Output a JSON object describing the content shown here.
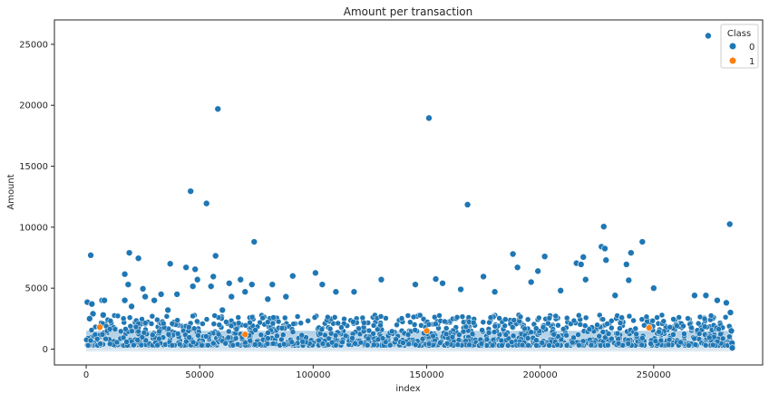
{
  "chart_data": {
    "type": "scatter",
    "title": "Amount per transaction",
    "xlabel": "index",
    "ylabel": "Amount",
    "xlim": [
      -14000,
      298000
    ],
    "ylim": [
      -1300,
      27000
    ],
    "xticks": [
      0,
      50000,
      100000,
      150000,
      200000,
      250000
    ],
    "yticks": [
      0,
      5000,
      10000,
      15000,
      20000,
      25000
    ],
    "grid": false,
    "legend": {
      "title": "Class",
      "placement": "top-right",
      "entries": [
        {
          "label": "0",
          "color": "#1f77b4"
        },
        {
          "label": "1",
          "color": "#ff7f0e"
        }
      ]
    },
    "bulk_band": {
      "class": "0",
      "x_range": [
        0,
        284807
      ],
      "amount_range": [
        0,
        2500
      ],
      "note_density": "dense"
    },
    "series": [
      {
        "name": "0",
        "color": "#1f77b4",
        "points": [
          [
            500,
            3850
          ],
          [
            2000,
            7700
          ],
          [
            2500,
            3700
          ],
          [
            3000,
            2900
          ],
          [
            1500,
            2500
          ],
          [
            7000,
            4000
          ],
          [
            8000,
            4000
          ],
          [
            7500,
            2800
          ],
          [
            19000,
            7900
          ],
          [
            23000,
            7450
          ],
          [
            17000,
            6150
          ],
          [
            18500,
            5300
          ],
          [
            17000,
            4000
          ],
          [
            25000,
            4950
          ],
          [
            20000,
            3500
          ],
          [
            26000,
            4300
          ],
          [
            30000,
            4000
          ],
          [
            33000,
            4500
          ],
          [
            36000,
            3200
          ],
          [
            37000,
            7000
          ],
          [
            40000,
            4500
          ],
          [
            44000,
            6700
          ],
          [
            46000,
            12950
          ],
          [
            47000,
            5150
          ],
          [
            48000,
            6550
          ],
          [
            49000,
            5700
          ],
          [
            53000,
            11950
          ],
          [
            55000,
            5150
          ],
          [
            57000,
            7650
          ],
          [
            56000,
            5950
          ],
          [
            58000,
            19700
          ],
          [
            60000,
            3200
          ],
          [
            63000,
            5400
          ],
          [
            64000,
            4300
          ],
          [
            68000,
            5700
          ],
          [
            70000,
            4700
          ],
          [
            74000,
            8800
          ],
          [
            73000,
            5300
          ],
          [
            82000,
            5300
          ],
          [
            80000,
            4100
          ],
          [
            91000,
            6000
          ],
          [
            88000,
            4300
          ],
          [
            101000,
            6250
          ],
          [
            104000,
            5300
          ],
          [
            110000,
            4700
          ],
          [
            118000,
            4700
          ],
          [
            130000,
            5700
          ],
          [
            145000,
            5300
          ],
          [
            151000,
            18950
          ],
          [
            154000,
            5750
          ],
          [
            157000,
            5400
          ],
          [
            168000,
            11850
          ],
          [
            165000,
            4900
          ],
          [
            175000,
            5950
          ],
          [
            180000,
            4700
          ],
          [
            188000,
            7800
          ],
          [
            190000,
            6700
          ],
          [
            196000,
            5500
          ],
          [
            199000,
            6400
          ],
          [
            202000,
            7600
          ],
          [
            209000,
            4800
          ],
          [
            216000,
            7050
          ],
          [
            218000,
            6950
          ],
          [
            219000,
            7550
          ],
          [
            220000,
            5700
          ],
          [
            227000,
            8400
          ],
          [
            228000,
            10050
          ],
          [
            228500,
            8250
          ],
          [
            229000,
            7300
          ],
          [
            233000,
            4400
          ],
          [
            238000,
            6950
          ],
          [
            240000,
            7900
          ],
          [
            239000,
            5650
          ],
          [
            245000,
            8800
          ],
          [
            250000,
            5000
          ],
          [
            268000,
            4400
          ],
          [
            273000,
            4400
          ],
          [
            274000,
            25700
          ],
          [
            283500,
            10250
          ],
          [
            282000,
            3800
          ],
          [
            278000,
            4000
          ],
          [
            283800,
            3000
          ],
          [
            284200,
            1500
          ],
          [
            284500,
            500
          ],
          [
            284600,
            100
          ]
        ]
      },
      {
        "name": "1",
        "color": "#ff7f0e",
        "points": [
          [
            6000,
            1800
          ],
          [
            150000,
            1500
          ],
          [
            248000,
            1750
          ],
          [
            70000,
            1200
          ]
        ]
      }
    ]
  }
}
